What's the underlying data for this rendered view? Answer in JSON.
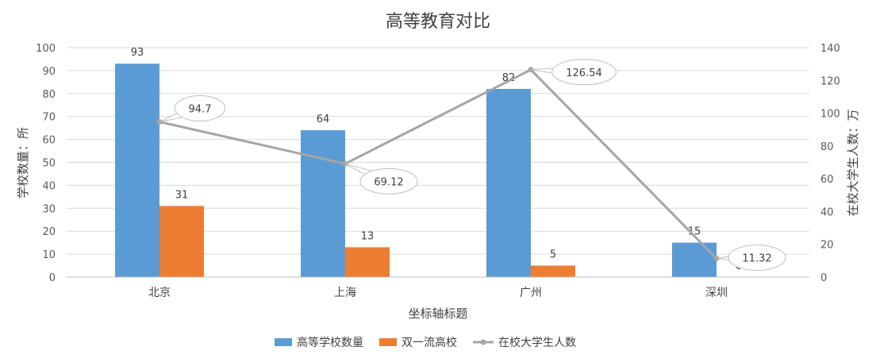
{
  "chart_data": {
    "type": "bar",
    "title": "高等教育对比",
    "xlabel": "坐标轴标题",
    "ylabel": "学校数量：所",
    "y2label": "在校大学生人数：万",
    "categories": [
      "北京",
      "上海",
      "广州",
      "深圳"
    ],
    "ylim": [
      0,
      100
    ],
    "y2lim": [
      0,
      140
    ],
    "yticks": [
      0,
      10,
      20,
      30,
      40,
      50,
      60,
      70,
      80,
      90,
      100
    ],
    "y2ticks": [
      0,
      20,
      40,
      60,
      80,
      100,
      120,
      140
    ],
    "grid": true,
    "legend_position": "bottom",
    "series": [
      {
        "name": "高等学校数量",
        "type": "bar",
        "axis": "left",
        "color": "#5B9BD5",
        "values": [
          93,
          64,
          82,
          15
        ]
      },
      {
        "name": "双一流高校",
        "type": "bar",
        "axis": "left",
        "color": "#ED7D31",
        "values": [
          31,
          13,
          5,
          0
        ]
      },
      {
        "name": "在校大学生人数",
        "type": "line",
        "axis": "right",
        "color": "#A5A5A5",
        "values": [
          94.7,
          69.12,
          126.54,
          11.32
        ]
      }
    ]
  }
}
